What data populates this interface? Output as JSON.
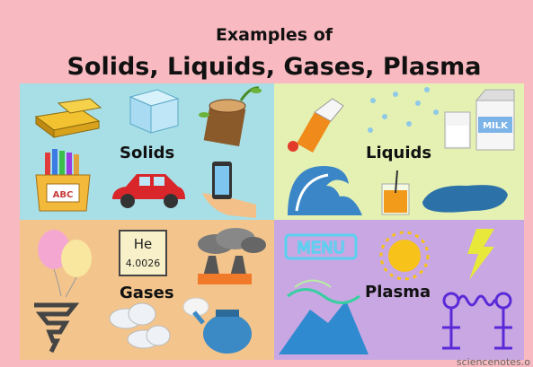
{
  "header": {
    "title": "Examples of",
    "subtitle": "Solids, Liquids, Gases, Plasma"
  },
  "quadrants": [
    {
      "label": "Solids",
      "icon_texts": [
        "ABC"
      ]
    },
    {
      "label": "Liquids",
      "icon_texts": [
        "MILK"
      ]
    },
    {
      "label": "Gases",
      "icon_texts": [
        "He",
        "4.0026"
      ]
    },
    {
      "label": "Plasma",
      "icon_texts": [
        "MENU"
      ]
    }
  ],
  "watermark": "sciencenotes.o"
}
